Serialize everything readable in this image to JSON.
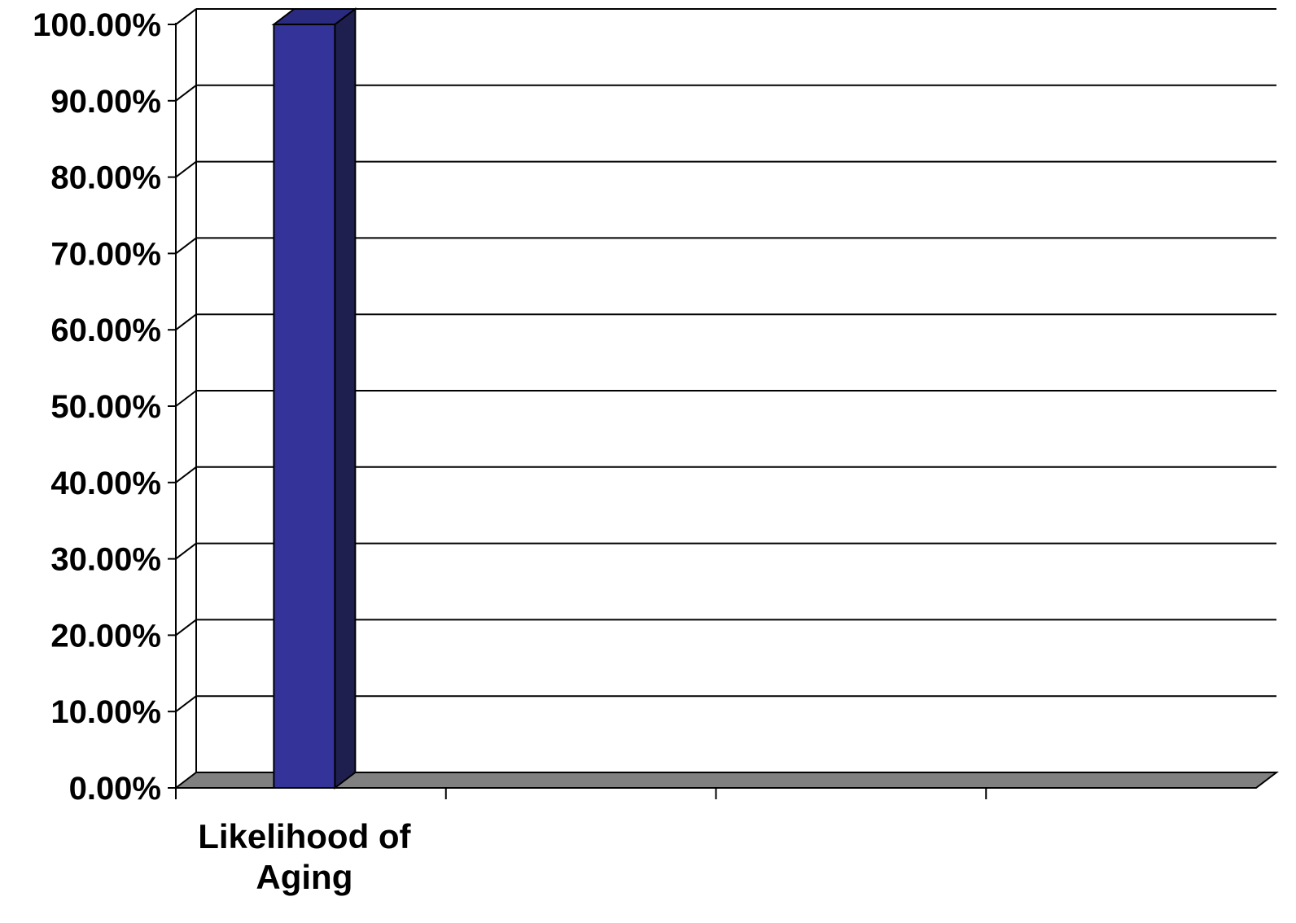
{
  "chart_data": {
    "type": "bar",
    "style": "3d-column",
    "categories": [
      "Likelihood of Aging",
      "",
      "",
      ""
    ],
    "category_lines": [
      [
        "Likelihood of",
        "Aging"
      ],
      [],
      [],
      []
    ],
    "values": [
      100,
      null,
      null,
      null
    ],
    "ylim": [
      0,
      100
    ],
    "yticks": [
      0,
      10,
      20,
      30,
      40,
      50,
      60,
      70,
      80,
      90,
      100
    ],
    "ytick_labels": [
      "0.00%",
      "10.00%",
      "20.00%",
      "30.00%",
      "40.00%",
      "50.00%",
      "60.00%",
      "70.00%",
      "80.00%",
      "90.00%",
      "100.00%"
    ],
    "grid": true,
    "legend": "none",
    "title": "",
    "xlabel": "",
    "ylabel": ""
  },
  "colors": {
    "bar_front": "#333399",
    "bar_side": "#1f1f4f",
    "bar_top": "#2a2a80",
    "floor": "#808080",
    "gridline": "#000000",
    "background": "#ffffff"
  }
}
